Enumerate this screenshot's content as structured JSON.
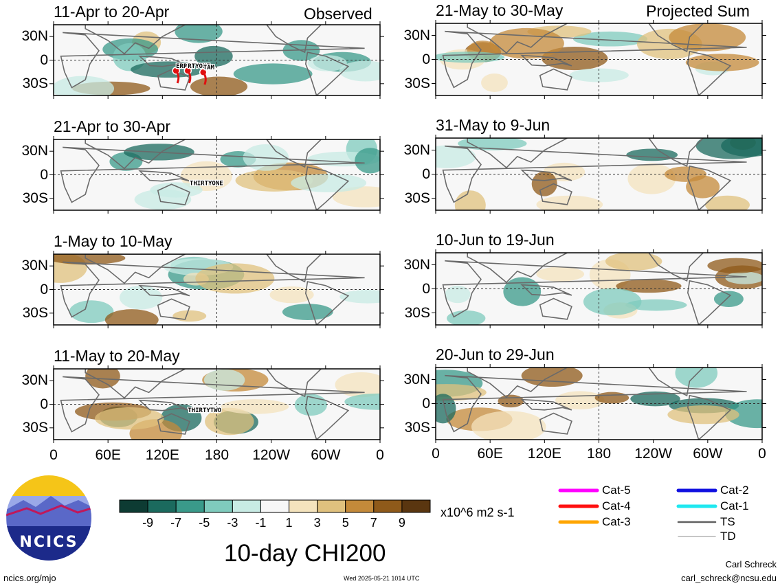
{
  "headers": {
    "left": "Observed",
    "right": "Projected Sum"
  },
  "panels": {
    "left": [
      {
        "title": "11-Apr to 20-Apr",
        "storms": [
          {
            "name": "ERROL"
          },
          {
            "name": "RTYONE"
          },
          {
            "name": "TAM"
          }
        ]
      },
      {
        "title": "21-Apr to 30-Apr",
        "storms": [
          {
            "name": "THIRTYONE"
          }
        ]
      },
      {
        "title": "1-May to 10-May",
        "storms": []
      },
      {
        "title": "11-May to 20-May",
        "storms": [
          {
            "name": "THIRTYTWO"
          }
        ]
      }
    ],
    "right": [
      {
        "title": "21-May to 30-May",
        "storms": []
      },
      {
        "title": "31-May to 9-Jun",
        "storms": []
      },
      {
        "title": "10-Jun to 19-Jun",
        "storms": []
      },
      {
        "title": "20-Jun to 29-Jun",
        "storms": []
      }
    ]
  },
  "lat_labels": [
    "30N",
    "0",
    "30S"
  ],
  "lon_labels": [
    "0",
    "60E",
    "120E",
    "180",
    "120W",
    "60W",
    "0"
  ],
  "colorbar": {
    "labels": [
      "-9",
      "-7",
      "-5",
      "-3",
      "-1",
      "1",
      "3",
      "5",
      "7",
      "9"
    ],
    "colors": [
      "#0d3b33",
      "#1b6a5e",
      "#3a9a8a",
      "#7fcbbd",
      "#c8ebe4",
      "#f7f7f7",
      "#f4e3bd",
      "#e0c17e",
      "#c48a3a",
      "#8f5a1a",
      "#5a3610"
    ],
    "units": "x10^6 m2 s-1"
  },
  "title": "10-day CHI200",
  "logo_text": "NCICS",
  "legend": [
    {
      "label": "Cat-5",
      "color": "#ff00ff"
    },
    {
      "label": "Cat-4",
      "color": "#ff1010"
    },
    {
      "label": "Cat-3",
      "color": "#ffa500"
    },
    {
      "label": "Cat-2",
      "color": "#1010e0"
    },
    {
      "label": "Cat-1",
      "color": "#20e8f0"
    },
    {
      "label": "TS",
      "color": "#606060"
    },
    {
      "label": "TD",
      "color": "#b4b4b4"
    }
  ],
  "footer": {
    "url": "ncics.org/mjo",
    "timestamp": "Wed 2025-05-21 1014 UTC",
    "author": "Carl Schreck",
    "email": "carl_schreck@ncsu.edu"
  }
}
